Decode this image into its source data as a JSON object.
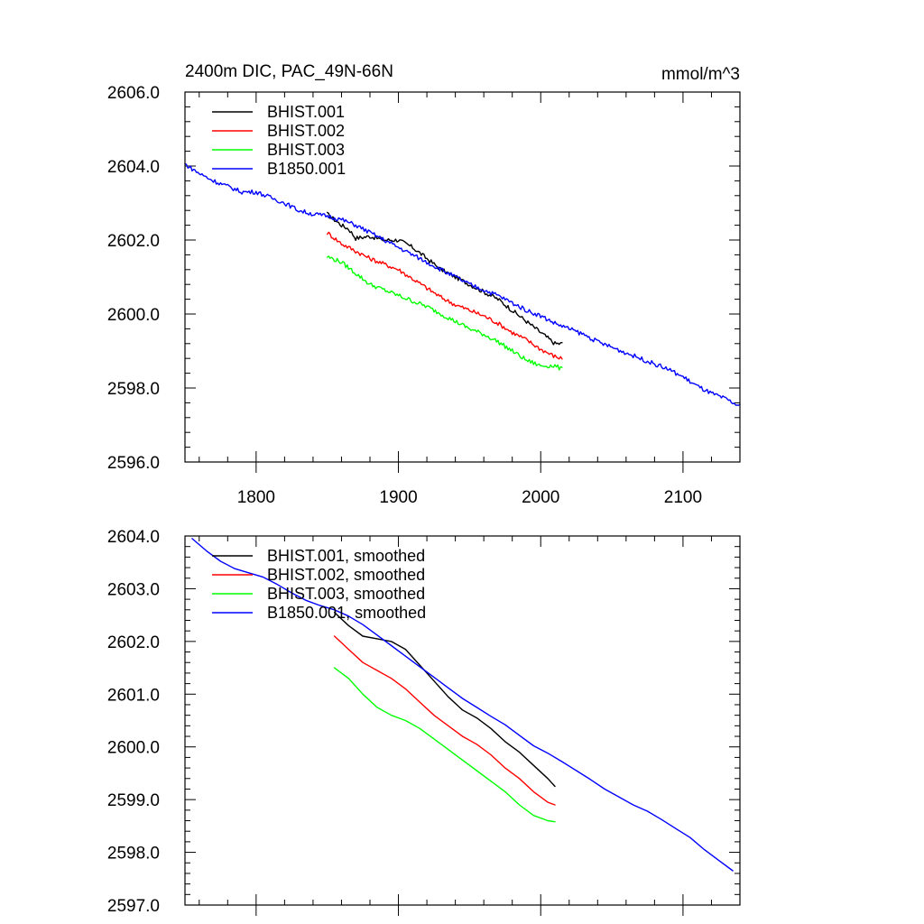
{
  "chart_data": [
    {
      "type": "line",
      "title": "2400m DIC, PAC_49N-66N",
      "units": "mmol/m^3",
      "xlim": [
        1750,
        2140
      ],
      "ylim": [
        2596.0,
        2606.0
      ],
      "x_ticks": [
        1800,
        1900,
        2000,
        2100
      ],
      "x_tick_labels": [
        "1800",
        "1900",
        "2000",
        "2100"
      ],
      "y_ticks": [
        2596.0,
        2598.0,
        2600.0,
        2602.0,
        2604.0,
        2606.0
      ],
      "y_tick_labels": [
        "2596.0",
        "2598.0",
        "2600.0",
        "2602.0",
        "2604.0",
        "2606.0"
      ],
      "legend_position": "top-left",
      "series": [
        {
          "name": "BHIST.001",
          "color": "#000000",
          "noise": 0.06,
          "points": [
            [
              1850,
              2602.7
            ],
            [
              1860,
              2602.4
            ],
            [
              1865,
              2602.3
            ],
            [
              1870,
              2602.05
            ],
            [
              1880,
              2602.1
            ],
            [
              1890,
              2602.0
            ],
            [
              1900,
              2602.0
            ],
            [
              1910,
              2601.8
            ],
            [
              1920,
              2601.5
            ],
            [
              1930,
              2601.2
            ],
            [
              1940,
              2601.0
            ],
            [
              1950,
              2600.8
            ],
            [
              1960,
              2600.6
            ],
            [
              1970,
              2600.4
            ],
            [
              1980,
              2600.1
            ],
            [
              1990,
              2599.8
            ],
            [
              2000,
              2599.5
            ],
            [
              2010,
              2599.2
            ],
            [
              2015,
              2599.2
            ]
          ]
        },
        {
          "name": "BHIST.002",
          "color": "#ff0000",
          "noise": 0.06,
          "points": [
            [
              1850,
              2602.2
            ],
            [
              1860,
              2601.9
            ],
            [
              1870,
              2601.7
            ],
            [
              1880,
              2601.5
            ],
            [
              1890,
              2601.35
            ],
            [
              1900,
              2601.2
            ],
            [
              1910,
              2600.95
            ],
            [
              1920,
              2600.7
            ],
            [
              1930,
              2600.45
            ],
            [
              1940,
              2600.25
            ],
            [
              1950,
              2600.1
            ],
            [
              1960,
              2599.95
            ],
            [
              1970,
              2599.75
            ],
            [
              1980,
              2599.5
            ],
            [
              1990,
              2599.3
            ],
            [
              2000,
              2599.05
            ],
            [
              2010,
              2598.85
            ],
            [
              2015,
              2598.8
            ]
          ]
        },
        {
          "name": "BHIST.003",
          "color": "#00ff00",
          "noise": 0.06,
          "points": [
            [
              1850,
              2601.55
            ],
            [
              1860,
              2601.4
            ],
            [
              1870,
              2601.1
            ],
            [
              1880,
              2600.8
            ],
            [
              1890,
              2600.65
            ],
            [
              1900,
              2600.5
            ],
            [
              1910,
              2600.35
            ],
            [
              1920,
              2600.2
            ],
            [
              1930,
              2600.0
            ],
            [
              1940,
              2599.8
            ],
            [
              1950,
              2599.6
            ],
            [
              1960,
              2599.45
            ],
            [
              1970,
              2599.25
            ],
            [
              1980,
              2599.0
            ],
            [
              1990,
              2598.75
            ],
            [
              2000,
              2598.6
            ],
            [
              2010,
              2598.6
            ],
            [
              2015,
              2598.5
            ]
          ]
        },
        {
          "name": "B1850.001",
          "color": "#0000ff",
          "noise": 0.06,
          "points": [
            [
              1750,
              2604.05
            ],
            [
              1760,
              2603.8
            ],
            [
              1770,
              2603.6
            ],
            [
              1780,
              2603.45
            ],
            [
              1790,
              2603.3
            ],
            [
              1800,
              2603.3
            ],
            [
              1810,
              2603.15
            ],
            [
              1820,
              2603.0
            ],
            [
              1830,
              2602.8
            ],
            [
              1840,
              2602.7
            ],
            [
              1850,
              2602.65
            ],
            [
              1860,
              2602.55
            ],
            [
              1870,
              2602.4
            ],
            [
              1880,
              2602.2
            ],
            [
              1890,
              2602.0
            ],
            [
              1900,
              2601.8
            ],
            [
              1910,
              2601.6
            ],
            [
              1920,
              2601.4
            ],
            [
              1930,
              2601.2
            ],
            [
              1940,
              2601.0
            ],
            [
              1950,
              2600.8
            ],
            [
              1960,
              2600.65
            ],
            [
              1970,
              2600.5
            ],
            [
              1980,
              2600.3
            ],
            [
              1990,
              2600.1
            ],
            [
              2000,
              2599.95
            ],
            [
              2010,
              2599.75
            ],
            [
              2020,
              2599.6
            ],
            [
              2030,
              2599.45
            ],
            [
              2040,
              2599.25
            ],
            [
              2050,
              2599.1
            ],
            [
              2060,
              2598.95
            ],
            [
              2070,
              2598.8
            ],
            [
              2080,
              2598.65
            ],
            [
              2090,
              2598.5
            ],
            [
              2100,
              2598.3
            ],
            [
              2110,
              2598.05
            ],
            [
              2120,
              2597.85
            ],
            [
              2130,
              2597.7
            ],
            [
              2140,
              2597.5
            ]
          ]
        }
      ]
    },
    {
      "type": "line",
      "xlim": [
        1750,
        2140
      ],
      "ylim": [
        2597.0,
        2604.0
      ],
      "x_ticks": [
        1800,
        1900,
        2000,
        2100
      ],
      "y_ticks": [
        2597.0,
        2598.0,
        2599.0,
        2600.0,
        2601.0,
        2602.0,
        2603.0,
        2604.0
      ],
      "y_tick_labels": [
        "2597.0",
        "2598.0",
        "2599.0",
        "2600.0",
        "2601.0",
        "2602.0",
        "2603.0",
        "2604.0"
      ],
      "legend_position": "top-left",
      "series": [
        {
          "name": "BHIST.001, smoothed",
          "color": "#000000",
          "points": [
            [
              1855,
              2602.55
            ],
            [
              1865,
              2602.3
            ],
            [
              1875,
              2602.1
            ],
            [
              1885,
              2602.05
            ],
            [
              1895,
              2602.0
            ],
            [
              1905,
              2601.85
            ],
            [
              1915,
              2601.55
            ],
            [
              1925,
              2601.25
            ],
            [
              1935,
              2600.95
            ],
            [
              1945,
              2600.7
            ],
            [
              1955,
              2600.55
            ],
            [
              1965,
              2600.35
            ],
            [
              1975,
              2600.1
            ],
            [
              1985,
              2599.9
            ],
            [
              1995,
              2599.65
            ],
            [
              2005,
              2599.4
            ],
            [
              2010,
              2599.25
            ]
          ]
        },
        {
          "name": "BHIST.002, smoothed",
          "color": "#ff0000",
          "points": [
            [
              1855,
              2602.1
            ],
            [
              1865,
              2601.85
            ],
            [
              1875,
              2601.6
            ],
            [
              1885,
              2601.45
            ],
            [
              1895,
              2601.3
            ],
            [
              1905,
              2601.1
            ],
            [
              1915,
              2600.85
            ],
            [
              1925,
              2600.6
            ],
            [
              1935,
              2600.4
            ],
            [
              1945,
              2600.2
            ],
            [
              1955,
              2600.05
            ],
            [
              1965,
              2599.85
            ],
            [
              1975,
              2599.6
            ],
            [
              1985,
              2599.4
            ],
            [
              1995,
              2599.15
            ],
            [
              2005,
              2598.95
            ],
            [
              2010,
              2598.9
            ]
          ]
        },
        {
          "name": "BHIST.003, smoothed",
          "color": "#00ff00",
          "points": [
            [
              1855,
              2601.5
            ],
            [
              1865,
              2601.3
            ],
            [
              1875,
              2601.0
            ],
            [
              1885,
              2600.75
            ],
            [
              1895,
              2600.6
            ],
            [
              1905,
              2600.5
            ],
            [
              1915,
              2600.35
            ],
            [
              1925,
              2600.15
            ],
            [
              1935,
              2599.95
            ],
            [
              1945,
              2599.75
            ],
            [
              1955,
              2599.55
            ],
            [
              1965,
              2599.35
            ],
            [
              1975,
              2599.15
            ],
            [
              1985,
              2598.9
            ],
            [
              1995,
              2598.7
            ],
            [
              2005,
              2598.6
            ],
            [
              2010,
              2598.58
            ]
          ]
        },
        {
          "name": "B1850.001, smoothed",
          "color": "#0000ff",
          "points": [
            [
              1755,
              2603.95
            ],
            [
              1765,
              2603.72
            ],
            [
              1775,
              2603.52
            ],
            [
              1785,
              2603.38
            ],
            [
              1795,
              2603.3
            ],
            [
              1805,
              2603.22
            ],
            [
              1815,
              2603.08
            ],
            [
              1825,
              2602.92
            ],
            [
              1835,
              2602.78
            ],
            [
              1845,
              2602.68
            ],
            [
              1855,
              2602.6
            ],
            [
              1865,
              2602.48
            ],
            [
              1875,
              2602.32
            ],
            [
              1885,
              2602.12
            ],
            [
              1895,
              2601.92
            ],
            [
              1905,
              2601.72
            ],
            [
              1915,
              2601.52
            ],
            [
              1925,
              2601.32
            ],
            [
              1935,
              2601.12
            ],
            [
              1945,
              2600.92
            ],
            [
              1955,
              2600.75
            ],
            [
              1965,
              2600.58
            ],
            [
              1975,
              2600.42
            ],
            [
              1985,
              2600.22
            ],
            [
              1995,
              2600.02
            ],
            [
              2005,
              2599.88
            ],
            [
              2015,
              2599.72
            ],
            [
              2025,
              2599.55
            ],
            [
              2035,
              2599.38
            ],
            [
              2045,
              2599.2
            ],
            [
              2055,
              2599.05
            ],
            [
              2065,
              2598.9
            ],
            [
              2075,
              2598.78
            ],
            [
              2085,
              2598.62
            ],
            [
              2095,
              2598.45
            ],
            [
              2105,
              2598.28
            ],
            [
              2115,
              2598.05
            ],
            [
              2125,
              2597.85
            ],
            [
              2135,
              2597.65
            ]
          ]
        }
      ]
    }
  ]
}
